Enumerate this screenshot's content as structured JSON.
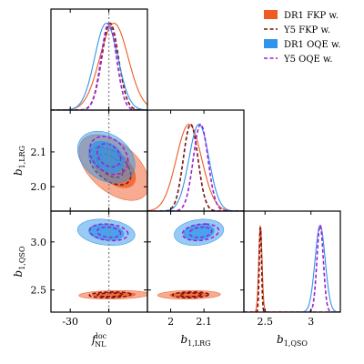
{
  "chart_data": {
    "type": "corner",
    "parameters": [
      {
        "key": "fnl",
        "label": "f",
        "label_sup": "loc",
        "label_sub": "NL",
        "range": [
          -45,
          30
        ],
        "ticks": [
          -30,
          0
        ]
      },
      {
        "key": "b_lrg",
        "label": "b",
        "label_sub": "1,LRG",
        "range": [
          1.93,
          2.22
        ],
        "ticks": [
          2.0,
          2.1
        ]
      },
      {
        "key": "b_qso",
        "label": "b",
        "label_sub": "1,QSO",
        "range": [
          2.27,
          3.32
        ],
        "ticks": [
          2.5,
          3.0
        ]
      }
    ],
    "reference_line": {
      "parameter": "fnl",
      "value": 0,
      "style": "dotted",
      "color": "#888888"
    },
    "legend": {
      "placement": "top-right",
      "entries": [
        {
          "name": "DR1 FKP w.",
          "color": "#f05a23",
          "style": "filled-patch"
        },
        {
          "name": "Y5 FKP w.",
          "color": "#7a0f0f",
          "style": "dashed"
        },
        {
          "name": "DR1 OQE w.",
          "color": "#2f95ea",
          "style": "filled-patch"
        },
        {
          "name": "Y5 OQE w.",
          "color": "#9a1fd6",
          "style": "dashed"
        }
      ]
    },
    "series": [
      {
        "name": "DR1 FKP w.",
        "color": "#f05a23",
        "kind": "filled",
        "mean": {
          "fnl": 4,
          "b_lrg": 2.055,
          "b_qso": 2.45
        },
        "sigma": {
          "fnl": 11,
          "b_lrg": 0.038,
          "b_qso": 0.018
        },
        "corr": {
          "fnl_b_lrg": -0.5,
          "fnl_b_qso": 0.15,
          "b_lrg_b_qso": 0.1
        }
      },
      {
        "name": "Y5 FKP w.",
        "color": "#7a0f0f",
        "kind": "dashed",
        "mean": {
          "fnl": 1,
          "b_lrg": 2.06,
          "b_qso": 2.45
        },
        "sigma": {
          "fnl": 6.5,
          "b_lrg": 0.022,
          "b_qso": 0.012
        },
        "corr": {
          "fnl_b_lrg": -0.5,
          "fnl_b_qso": 0.15,
          "b_lrg_b_qso": 0.1
        }
      },
      {
        "name": "DR1 OQE w.",
        "color": "#2f95ea",
        "kind": "filled",
        "mean": {
          "fnl": -2,
          "b_lrg": 2.085,
          "b_qso": 3.1
        },
        "sigma": {
          "fnl": 9,
          "b_lrg": 0.03,
          "b_qso": 0.055
        },
        "corr": {
          "fnl_b_lrg": -0.3,
          "fnl_b_qso": -0.2,
          "b_lrg_b_qso": 0.2
        }
      },
      {
        "name": "Y5 OQE w.",
        "color": "#9a1fd6",
        "kind": "dashed",
        "mean": {
          "fnl": 0,
          "b_lrg": 2.09,
          "b_qso": 3.1
        },
        "sigma": {
          "fnl": 6,
          "b_lrg": 0.022,
          "b_qso": 0.035
        },
        "corr": {
          "fnl_b_lrg": -0.3,
          "fnl_b_qso": -0.2,
          "b_lrg_b_qso": 0.2
        }
      }
    ]
  }
}
